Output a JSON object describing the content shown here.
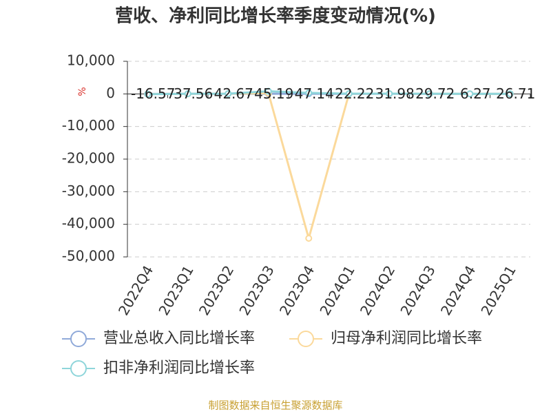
{
  "chart_data": {
    "type": "line",
    "title": "营收、净利同比增长率季度变动情况(%)",
    "y_label": "%",
    "footer": "制图数据来自恒生聚源数据库",
    "categories": [
      "2022Q4",
      "2023Q1",
      "2023Q2",
      "2023Q3",
      "2023Q4",
      "2024Q1",
      "2024Q2",
      "2024Q3",
      "2024Q4",
      "2025Q1"
    ],
    "series": [
      {
        "name": "营业总收入同比增长率",
        "color": "#8fa9d9",
        "values": [
          -16.57,
          37.56,
          42.67,
          45.19,
          47.14,
          22.22,
          31.98,
          29.72,
          6.27,
          26.71
        ]
      },
      {
        "name": "归母净利润同比增长率",
        "color": "#fbd99b",
        "values": [
          -50,
          30,
          60,
          200,
          -44300,
          50,
          80,
          40,
          20,
          30
        ]
      },
      {
        "name": "扣非净利润同比增长率",
        "color": "#8ed5da",
        "values": [
          -80,
          40,
          70,
          800,
          300,
          60,
          70,
          50,
          10,
          25
        ]
      }
    ],
    "ylim": [
      -50000,
      10000
    ],
    "yticks": [
      {
        "value": -50000,
        "label": "-50,000"
      },
      {
        "value": -40000,
        "label": "-40,000"
      },
      {
        "value": -30000,
        "label": "-30,000"
      },
      {
        "value": -20000,
        "label": "-20,000"
      },
      {
        "value": -10000,
        "label": "-10,000"
      },
      0,
      {
        "value": 10000,
        "label": "10,000"
      }
    ],
    "grid": true
  }
}
